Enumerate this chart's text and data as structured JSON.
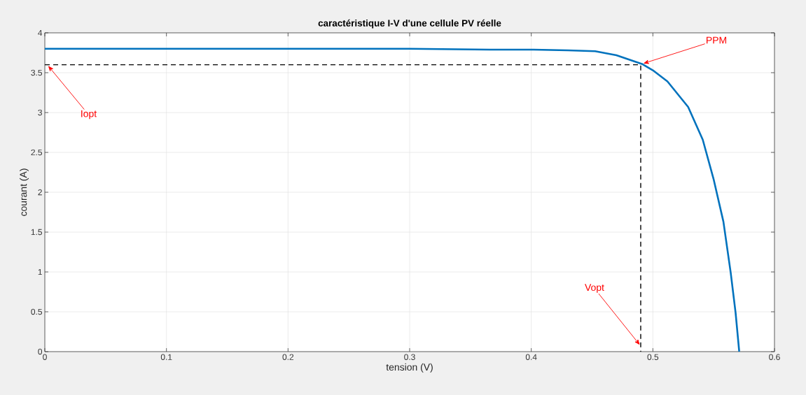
{
  "chart_data": {
    "type": "line",
    "title": "caractéristique I-V d'une cellule PV réelle",
    "xlabel": "tension (V)",
    "ylabel": "courant (A)",
    "xlim": [
      0,
      0.6
    ],
    "ylim": [
      0,
      4
    ],
    "xticks": [
      0,
      0.1,
      0.2,
      0.3,
      0.4,
      0.5,
      0.6
    ],
    "yticks": [
      0,
      0.5,
      1,
      1.5,
      2,
      2.5,
      3,
      3.5,
      4
    ],
    "grid": true,
    "series": [
      {
        "color": "#0072bd",
        "line_style": "solid",
        "x": [
          0,
          0.1,
          0.2,
          0.3,
          0.366,
          0.4,
          0.43,
          0.4525,
          0.47,
          0.491,
          0.5,
          0.512,
          0.529,
          0.541,
          0.55,
          0.558,
          0.564,
          0.568,
          0.571
        ],
        "values": [
          3.8,
          3.8,
          3.8,
          3.8,
          3.79,
          3.79,
          3.78,
          3.77,
          3.72,
          3.61,
          3.53,
          3.39,
          3.07,
          2.66,
          2.16,
          1.63,
          0.99,
          0.49,
          0
        ]
      },
      {
        "color": "#000000",
        "line_style": "dashed",
        "x": [
          0,
          0.49,
          0.49
        ],
        "values": [
          3.6,
          3.6,
          0
        ]
      }
    ],
    "annotations": [
      {
        "text": "PPM",
        "x": 0.491,
        "y": 3.61
      },
      {
        "text": "Iopt",
        "x": 0.002,
        "y": 3.6
      },
      {
        "text": "Vopt",
        "x": 0.49,
        "y": 0.07
      }
    ]
  }
}
